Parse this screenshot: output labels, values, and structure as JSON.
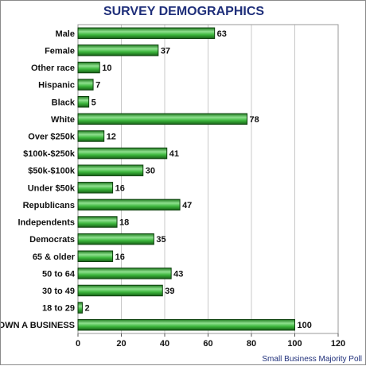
{
  "chart_data": {
    "type": "bar",
    "orientation": "horizontal",
    "title": "SURVEY DEMOGRAPHICS",
    "source": "Small Business Majority Poll",
    "categories": [
      "Male",
      "Female",
      "Other race",
      "Hispanic",
      "Black",
      "White",
      "Over $250k",
      "$100k-$250k",
      "$50k-$100k",
      "Under $50k",
      "Republicans",
      "Independents",
      "Democrats",
      "65 & older",
      "50 to 64",
      "30 to 49",
      "18 to 29",
      "OWN A BUSINESS"
    ],
    "values": [
      63,
      37,
      10,
      7,
      5,
      78,
      12,
      41,
      30,
      16,
      47,
      18,
      35,
      16,
      43,
      39,
      2,
      100
    ],
    "xlim": [
      0,
      120
    ],
    "xticks": [
      0,
      20,
      40,
      60,
      80,
      100,
      120
    ],
    "grid": true,
    "legend": "none",
    "bar_color": "#2e9a2e",
    "bar_highlight": "#8ee08e",
    "bar_border": "#0d3f0d",
    "grid_color": "#c8c8c8",
    "title_color": "#1f2f7a"
  }
}
